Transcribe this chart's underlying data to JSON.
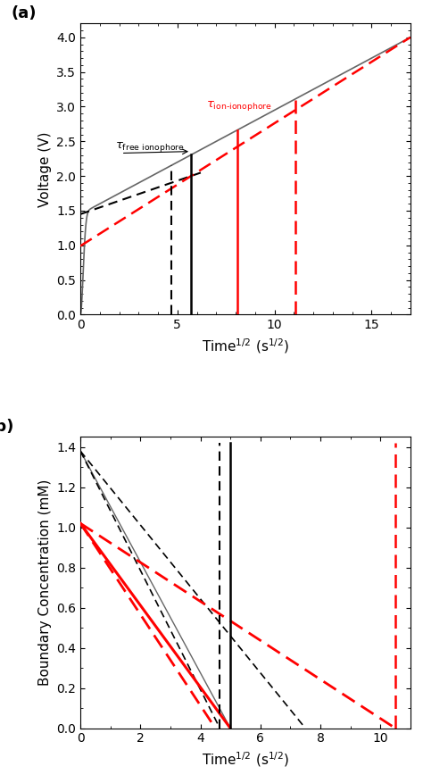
{
  "panel_a": {
    "xlabel": "Time$^{1/2}$ (s$^{1/2}$)",
    "ylabel": "Voltage (V)",
    "xlim": [
      0,
      17
    ],
    "ylim": [
      0,
      4.2
    ],
    "xticks": [
      0,
      5,
      10,
      15
    ],
    "yticks": [
      0.0,
      0.5,
      1.0,
      1.5,
      2.0,
      2.5,
      3.0,
      3.5,
      4.0
    ],
    "vline_black_dashed_x": 4.7,
    "vline_black_solid_x": 5.7,
    "vline_red_solid_x": 8.1,
    "vline_red_dashed_x": 11.1,
    "tau_free_x": 1.8,
    "tau_free_y": 2.28,
    "tau_ion_x": 6.5,
    "tau_ion_y": 2.88,
    "black_curve_color": "#666666",
    "black_dashed_color": "#000000",
    "red_dashed_color": "#ff0000"
  },
  "panel_b": {
    "xlabel": "Time$^{1/2}$ (s$^{1/2}$)",
    "ylabel": "Boundary Concentration (mM)",
    "xlim": [
      0,
      11
    ],
    "ylim": [
      0,
      1.45
    ],
    "xticks": [
      0,
      2,
      4,
      6,
      8,
      10
    ],
    "yticks": [
      0.0,
      0.2,
      0.4,
      0.6,
      0.8,
      1.0,
      1.2,
      1.4
    ],
    "vline_black_dashed_x": 4.65,
    "vline_black_solid_x": 5.0,
    "vline_red_dashed_x": 10.5,
    "black_solid_y0": 1.38,
    "black_solid_xint": 5.0,
    "black_dashed1_y0": 1.38,
    "black_dashed1_xint": 4.65,
    "black_dashed2_y0": 1.38,
    "black_dashed2_xint": 7.5,
    "red_solid_y0": 1.02,
    "red_solid_xint": 5.0,
    "red_dashed1_y0": 1.02,
    "red_dashed1_xint": 4.5,
    "red_dashed2_y0": 1.02,
    "red_dashed2_xint": 10.5,
    "black_curve_color": "#666666",
    "black_dashed_color": "#000000",
    "red_solid_color": "#ff0000",
    "red_dashed_color": "#ff0000"
  }
}
